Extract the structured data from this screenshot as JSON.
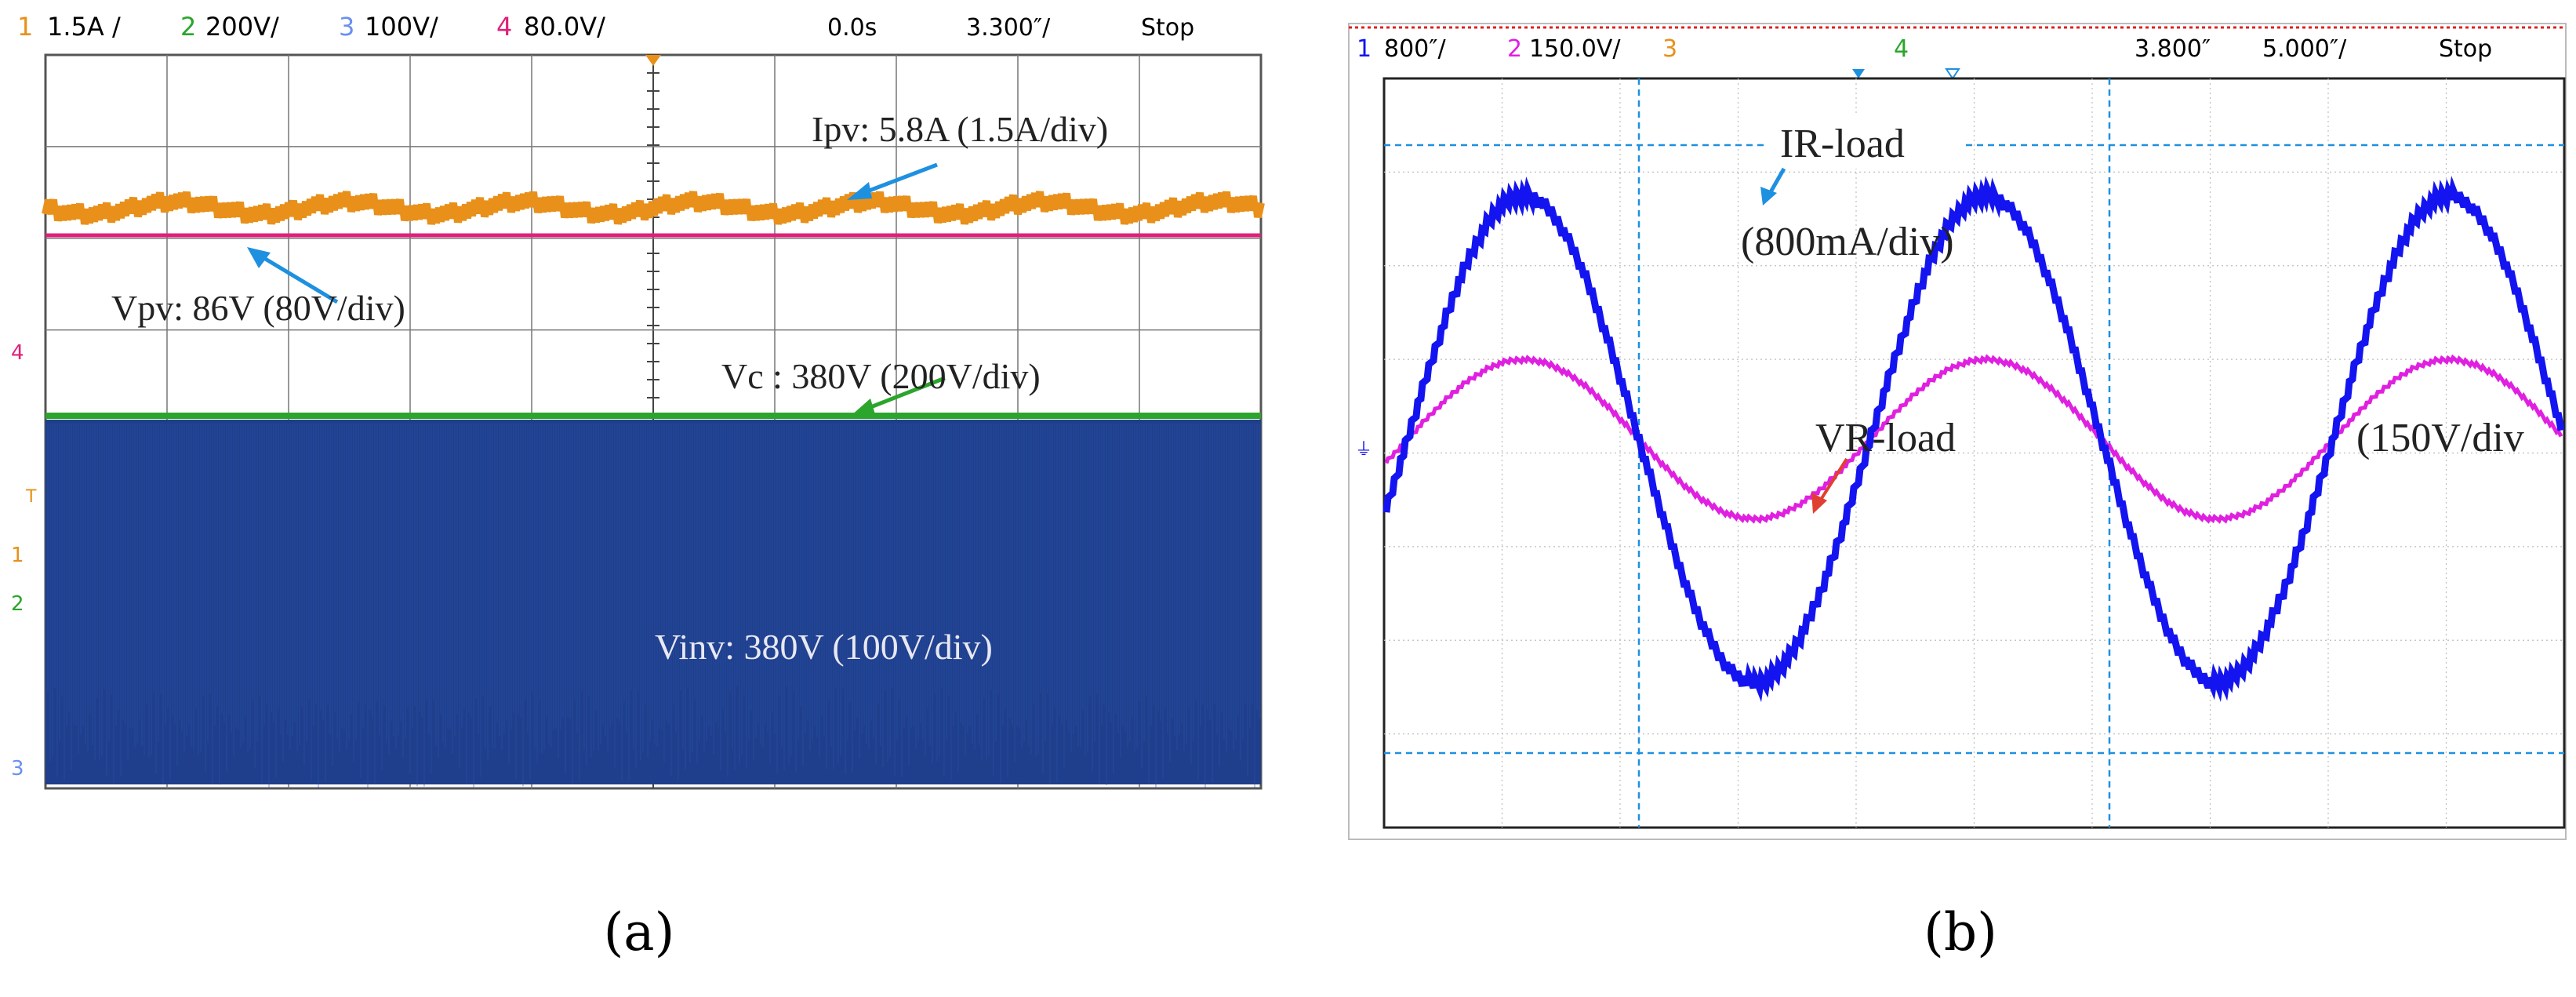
{
  "caption_a": "(a)",
  "caption_b": "(b)",
  "panel_a": {
    "header": {
      "ch1": {
        "num": "1",
        "scale": "1.5A /"
      },
      "ch2": {
        "num": "2",
        "scale": "200V/"
      },
      "ch3": {
        "num": "3",
        "scale": "100V/"
      },
      "ch4": {
        "num": "4",
        "scale": "80.0V/"
      },
      "time_pos": "0.0s",
      "timebase": "3.300″/",
      "status": "Stop"
    },
    "markers": {
      "m4": "4",
      "m1": "1",
      "m2": "2",
      "m3": "3",
      "trig": "T"
    },
    "annotations": {
      "ipv": "Ipv: 5.8A   (1.5A/div)",
      "vpv": "Vpv: 86V   (80V/div)",
      "vc": "Vc : 380V   (200V/div)",
      "vinv": "Vinv: 380V   (100V/div)"
    }
  },
  "panel_b": {
    "header": {
      "ch1": {
        "num": "1",
        "scale": "800″/"
      },
      "ch2": {
        "num": "2",
        "scale": "150.0V/"
      },
      "ch3": {
        "num": "3"
      },
      "ch4": {
        "num": "4"
      },
      "time_pos": "3.800″",
      "timebase": "5.000″/",
      "status": "Stop"
    },
    "annotations": {
      "ir_load": "IR-load",
      "ir_scale": "(800mA/div)",
      "vr_load": "VR-load",
      "vr_scale": "(150V/div"
    }
  },
  "colors": {
    "ch1_orange": "#e8901a",
    "ch2_green": "#2ba52b",
    "ch3_blue": "#6a8ff0",
    "ch4_pink": "#e0207a",
    "inv_fill": "#1f3f8c",
    "current_blue": "#1414f0",
    "voltage_magenta": "#e020e0",
    "cursor_blue": "#1e90e0"
  },
  "chart_data": [
    {
      "type": "line",
      "series": [
        {
          "name": "Ipv",
          "values": [
            5.8
          ]
        },
        {
          "name": "Vpv",
          "values": [
            86
          ]
        },
        {
          "name": "Vc",
          "values": [
            380
          ]
        },
        {
          "name": "Vinv",
          "values": [
            380
          ]
        }
      ],
      "annotations": [
        "Ipv: 5.8A   (1.5A/div)",
        "Vpv: 86V   (80V/div)",
        "Vc : 380V   (200V/div)",
        "Vinv: 380V   (100V/div)"
      ],
      "grid": true
    },
    {
      "type": "line",
      "series": [
        {
          "name": "IR-load",
          "amplitude_div": 2.6,
          "cycles": 2.5
        },
        {
          "name": "VR-load",
          "amplitude_div": 0.85,
          "cycles": 2.5
        }
      ],
      "annotations": [
        "IR-load",
        "(800mA/div)",
        "VR-load",
        "(150V/div"
      ],
      "grid": true
    }
  ]
}
